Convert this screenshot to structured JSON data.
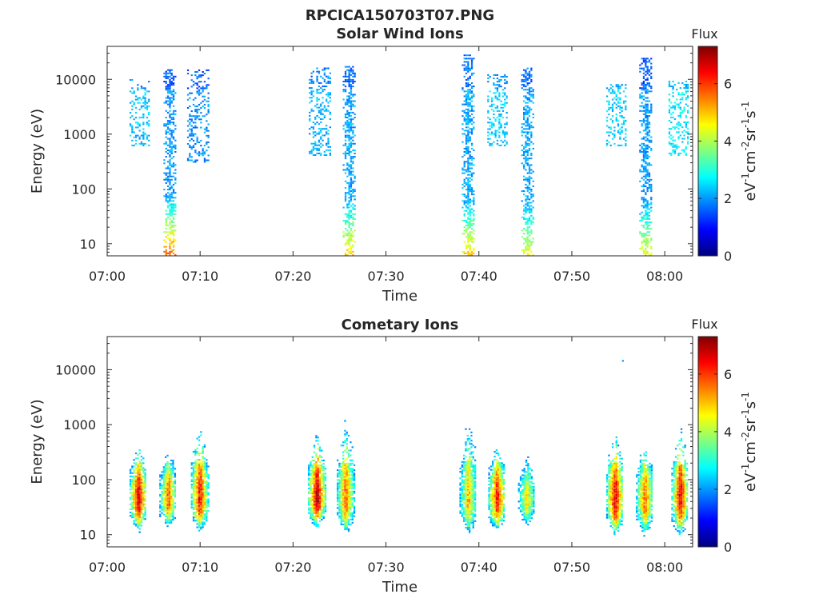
{
  "figure": {
    "title": "RPCICA150703T07.PNG",
    "colorscale": {
      "name": "jet",
      "stops": [
        "#00007f",
        "#0000ff",
        "#007fff",
        "#00ffff",
        "#7fff7f",
        "#ffff00",
        "#ff7f00",
        "#ff0000",
        "#7f0000"
      ]
    }
  },
  "chart_data": [
    {
      "type": "heatmap",
      "title": "Solar Wind Ions",
      "xlabel": "Time",
      "ylabel": "Energy (eV)",
      "y_scale": "log",
      "ylim": [
        6,
        40000
      ],
      "xlim": [
        "07:00",
        "08:03"
      ],
      "x_ticks": [
        "07:00",
        "07:10",
        "07:20",
        "07:30",
        "07:40",
        "07:50",
        "08:00"
      ],
      "y_ticks": [
        "10",
        "100",
        "1000",
        "10000"
      ],
      "colorbar": {
        "label": "Flux",
        "unit": "eV-1cm-2sr-1s-1",
        "range": [
          0,
          7.3
        ],
        "ticks": [
          "0",
          "2",
          "4",
          "6"
        ]
      },
      "bursts": [
        {
          "time_min": 3.5,
          "e_min": 600,
          "e_max": 10000,
          "flux": 2.3,
          "density": 0.3,
          "kind": "diffuse"
        },
        {
          "time_min": 6.7,
          "e_min": 6,
          "e_max": 15000,
          "flux": 2.0,
          "density": 0.75,
          "kind": "column",
          "low_energy_flux": 4.6
        },
        {
          "time_min": 9.7,
          "e_min": 300,
          "e_max": 15000,
          "flux": 1.9,
          "density": 0.3,
          "kind": "diffuse"
        },
        {
          "time_min": 22.8,
          "e_min": 400,
          "e_max": 16000,
          "flux": 2.2,
          "density": 0.3,
          "kind": "diffuse"
        },
        {
          "time_min": 26.0,
          "e_min": 6,
          "e_max": 17000,
          "flux": 2.1,
          "density": 0.75,
          "kind": "column",
          "low_energy_flux": 4.0
        },
        {
          "time_min": 38.8,
          "e_min": 6,
          "e_max": 28000,
          "flux": 2.1,
          "density": 0.75,
          "kind": "column",
          "low_energy_flux": 4.0
        },
        {
          "time_min": 42.0,
          "e_min": 600,
          "e_max": 12000,
          "flux": 2.4,
          "density": 0.3,
          "kind": "diffuse"
        },
        {
          "time_min": 45.2,
          "e_min": 6,
          "e_max": 16000,
          "flux": 2.1,
          "density": 0.75,
          "kind": "column",
          "low_energy_flux": 3.6
        },
        {
          "time_min": 54.8,
          "e_min": 600,
          "e_max": 8000,
          "flux": 2.4,
          "density": 0.3,
          "kind": "diffuse"
        },
        {
          "time_min": 57.9,
          "e_min": 6,
          "e_max": 24000,
          "flux": 2.0,
          "density": 0.75,
          "kind": "column",
          "low_energy_flux": 3.6
        },
        {
          "time_min": 61.5,
          "e_min": 400,
          "e_max": 9000,
          "flux": 2.6,
          "density": 0.3,
          "kind": "diffuse"
        }
      ]
    },
    {
      "type": "heatmap",
      "title": "Cometary Ions",
      "xlabel": "Time",
      "ylabel": "Energy (eV)",
      "y_scale": "log",
      "ylim": [
        6,
        40000
      ],
      "xlim": [
        "07:00",
        "08:03"
      ],
      "x_ticks": [
        "07:00",
        "07:10",
        "07:20",
        "07:30",
        "07:40",
        "07:50",
        "08:00"
      ],
      "y_ticks": [
        "10",
        "100",
        "1000",
        "10000"
      ],
      "colorbar": {
        "label": "Flux",
        "unit": "eV-1cm-2sr-1s-1",
        "range": [
          0,
          7.3
        ],
        "ticks": [
          "0",
          "2",
          "4",
          "6"
        ]
      },
      "bursts": [
        {
          "time_min": 3.3,
          "e_min": 10,
          "e_max": 500,
          "peak_flux": 7.0
        },
        {
          "time_min": 6.5,
          "e_min": 12,
          "e_max": 400,
          "peak_flux": 6.0
        },
        {
          "time_min": 9.9,
          "e_min": 10,
          "e_max": 1100,
          "peak_flux": 6.6
        },
        {
          "time_min": 22.5,
          "e_min": 12,
          "e_max": 800,
          "peak_flux": 7.2
        },
        {
          "time_min": 25.6,
          "e_min": 8,
          "e_max": 1500,
          "peak_flux": 5.8
        },
        {
          "time_min": 38.8,
          "e_min": 8,
          "e_max": 1500,
          "peak_flux": 5.2
        },
        {
          "time_min": 41.9,
          "e_min": 10,
          "e_max": 500,
          "peak_flux": 6.6
        },
        {
          "time_min": 45.1,
          "e_min": 12,
          "e_max": 300,
          "peak_flux": 4.8
        },
        {
          "time_min": 54.6,
          "e_min": 8,
          "e_max": 800,
          "peak_flux": 6.8
        },
        {
          "time_min": 57.8,
          "e_min": 8,
          "e_max": 600,
          "peak_flux": 5.8
        },
        {
          "time_min": 61.6,
          "e_min": 8,
          "e_max": 1000,
          "peak_flux": 6.8
        }
      ],
      "isolated_points": [
        {
          "time_min": 55.4,
          "energy": 14000,
          "flux": 2.0
        }
      ]
    }
  ]
}
